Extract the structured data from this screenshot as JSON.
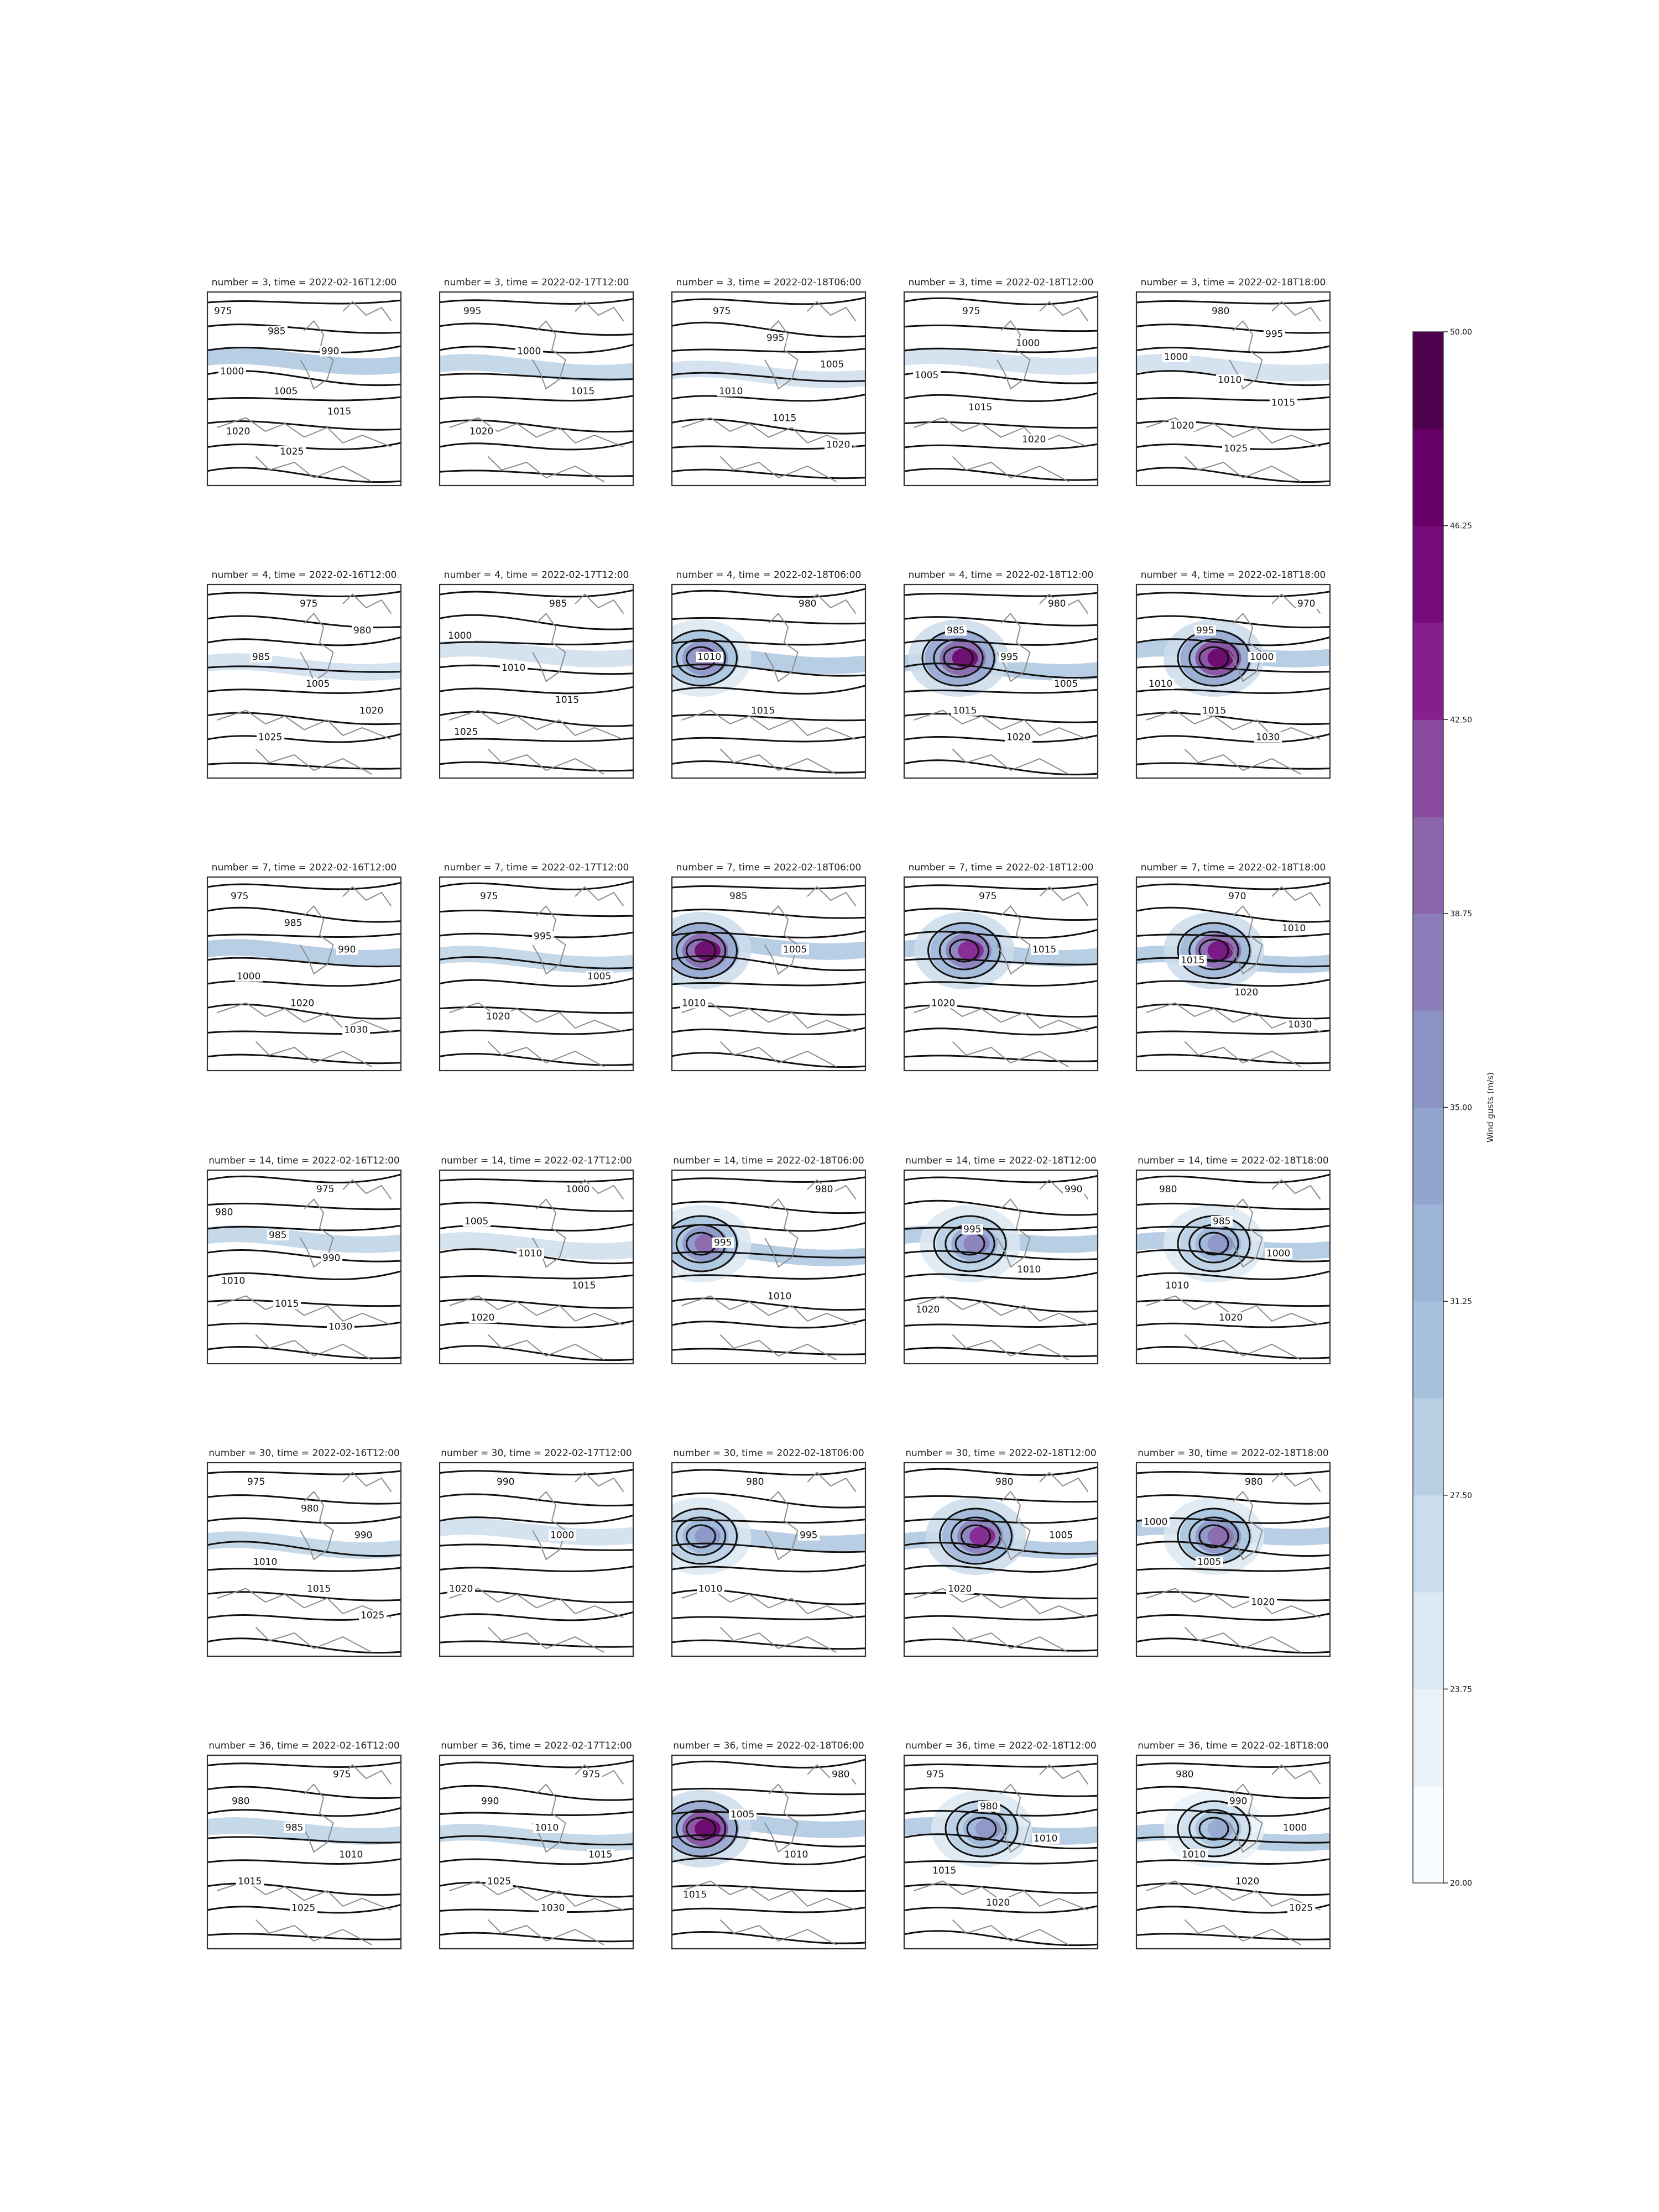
{
  "figure": {
    "colorbar": {
      "label": "Wind gusts (m/s)",
      "ticks": [
        "20.00",
        "23.75",
        "27.50",
        "31.25",
        "35.00",
        "38.75",
        "42.50",
        "46.25",
        "50.00"
      ],
      "min": 20,
      "max": 50,
      "levels": 16,
      "cmap": "BuPu",
      "colors": [
        "#f7fbfd",
        "#e9f2f8",
        "#dce8f2",
        "#cbdcec",
        "#b8cfe4",
        "#a6c2dd",
        "#9cb5d7",
        "#93a5cf",
        "#8c93c5",
        "#8b7db9",
        "#8a65ac",
        "#88499f",
        "#851f8e",
        "#770a7b",
        "#670067",
        "#4d004b"
      ]
    }
  },
  "chart_data": [
    {
      "type": "contour-map",
      "title": "number = 3, time = 2022-02-16T12:00",
      "contour_labels": [
        "975",
        "985",
        "990",
        "1000",
        "1005",
        "1015",
        "1020",
        "1025"
      ],
      "gust_max": 30
    },
    {
      "type": "contour-map",
      "title": "number = 3, time = 2022-02-17T12:00",
      "contour_labels": [
        "995",
        "1000",
        "1015",
        "1020"
      ],
      "gust_max": 28
    },
    {
      "type": "contour-map",
      "title": "number = 3, time = 2022-02-18T06:00",
      "contour_labels": [
        "975",
        "995",
        "1005",
        "1010",
        "1015",
        "1020"
      ],
      "gust_max": 26
    },
    {
      "type": "contour-map",
      "title": "number = 3, time = 2022-02-18T12:00",
      "contour_labels": [
        "975",
        "1000",
        "1005",
        "1015",
        "1020"
      ],
      "gust_max": 26
    },
    {
      "type": "contour-map",
      "title": "number = 3, time = 2022-02-18T18:00",
      "contour_labels": [
        "980",
        "995",
        "1000",
        "1010",
        "1015",
        "1020",
        "1025"
      ],
      "gust_max": 26
    },
    {
      "type": "contour-map",
      "title": "number = 4, time = 2022-02-16T12:00",
      "contour_labels": [
        "975",
        "980",
        "985",
        "1005",
        "1020",
        "1025"
      ],
      "gust_max": 27
    },
    {
      "type": "contour-map",
      "title": "number = 4, time = 2022-02-17T12:00",
      "contour_labels": [
        "985",
        "1000",
        "1010",
        "1015",
        "1025"
      ],
      "gust_max": 27
    },
    {
      "type": "contour-map",
      "title": "number = 4, time = 2022-02-18T06:00",
      "contour_labels": [
        "980",
        "1010",
        "1015"
      ],
      "gust_max": 40
    },
    {
      "type": "contour-map",
      "title": "number = 4, time = 2022-02-18T12:00",
      "contour_labels": [
        "980",
        "985",
        "995",
        "1005",
        "1015",
        "1020"
      ],
      "gust_max": 47
    },
    {
      "type": "contour-map",
      "title": "number = 4, time = 2022-02-18T18:00",
      "contour_labels": [
        "970",
        "995",
        "1000",
        "1010",
        "1015",
        "1030"
      ],
      "gust_max": 48
    },
    {
      "type": "contour-map",
      "title": "number = 7, time = 2022-02-16T12:00",
      "contour_labels": [
        "975",
        "985",
        "990",
        "1000",
        "1020",
        "1030"
      ],
      "gust_max": 30
    },
    {
      "type": "contour-map",
      "title": "number = 7, time = 2022-02-17T12:00",
      "contour_labels": [
        "975",
        "995",
        "1005",
        "1020"
      ],
      "gust_max": 28
    },
    {
      "type": "contour-map",
      "title": "number = 7, time = 2022-02-18T06:00",
      "contour_labels": [
        "985",
        "1005",
        "1010"
      ],
      "gust_max": 47
    },
    {
      "type": "contour-map",
      "title": "number = 7, time = 2022-02-18T12:00",
      "contour_labels": [
        "975",
        "1015",
        "1020"
      ],
      "gust_max": 44
    },
    {
      "type": "contour-map",
      "title": "number = 7, time = 2022-02-18T18:00",
      "contour_labels": [
        "970",
        "1010",
        "1015",
        "1020",
        "1030"
      ],
      "gust_max": 45
    },
    {
      "type": "contour-map",
      "title": "number = 14, time = 2022-02-16T12:00",
      "contour_labels": [
        "975",
        "980",
        "985",
        "990",
        "1010",
        "1015",
        "1030"
      ],
      "gust_max": 28
    },
    {
      "type": "contour-map",
      "title": "number = 14, time = 2022-02-17T12:00",
      "contour_labels": [
        "1000",
        "1005",
        "1010",
        "1015",
        "1020"
      ],
      "gust_max": 27
    },
    {
      "type": "contour-map",
      "title": "number = 14, time = 2022-02-18T06:00",
      "contour_labels": [
        "980",
        "995",
        "1010"
      ],
      "gust_max": 40
    },
    {
      "type": "contour-map",
      "title": "number = 14, time = 2022-02-18T12:00",
      "contour_labels": [
        "990",
        "995",
        "1010",
        "1020"
      ],
      "gust_max": 38
    },
    {
      "type": "contour-map",
      "title": "number = 14, time = 2022-02-18T18:00",
      "contour_labels": [
        "980",
        "985",
        "1000",
        "1010",
        "1020"
      ],
      "gust_max": 36
    },
    {
      "type": "contour-map",
      "title": "number = 30, time = 2022-02-16T12:00",
      "contour_labels": [
        "975",
        "980",
        "990",
        "1010",
        "1015",
        "1025"
      ],
      "gust_max": 29
    },
    {
      "type": "contour-map",
      "title": "number = 30, time = 2022-02-17T12:00",
      "contour_labels": [
        "990",
        "1000",
        "1020"
      ],
      "gust_max": 27
    },
    {
      "type": "contour-map",
      "title": "number = 30, time = 2022-02-18T06:00",
      "contour_labels": [
        "980",
        "995",
        "1010"
      ],
      "gust_max": 36
    },
    {
      "type": "contour-map",
      "title": "number = 30, time = 2022-02-18T12:00",
      "contour_labels": [
        "980",
        "1005",
        "1020"
      ],
      "gust_max": 44
    },
    {
      "type": "contour-map",
      "title": "number = 30, time = 2022-02-18T18:00",
      "contour_labels": [
        "980",
        "1000",
        "1005",
        "1020"
      ],
      "gust_max": 40
    },
    {
      "type": "contour-map",
      "title": "number = 36, time = 2022-02-16T12:00",
      "contour_labels": [
        "975",
        "980",
        "985",
        "1010",
        "1015",
        "1025"
      ],
      "gust_max": 29
    },
    {
      "type": "contour-map",
      "title": "number = 36, time = 2022-02-17T12:00",
      "contour_labels": [
        "975",
        "990",
        "1010",
        "1015",
        "1025",
        "1030"
      ],
      "gust_max": 28
    },
    {
      "type": "contour-map",
      "title": "number = 36, time = 2022-02-18T06:00",
      "contour_labels": [
        "980",
        "1005",
        "1010",
        "1015"
      ],
      "gust_max": 48
    },
    {
      "type": "contour-map",
      "title": "number = 36, time = 2022-02-18T12:00",
      "contour_labels": [
        "975",
        "980",
        "1010",
        "1015",
        "1020"
      ],
      "gust_max": 36
    },
    {
      "type": "contour-map",
      "title": "number = 36, time = 2022-02-18T18:00",
      "contour_labels": [
        "980",
        "990",
        "1000",
        "1010",
        "1020",
        "1025"
      ],
      "gust_max": 34
    }
  ]
}
